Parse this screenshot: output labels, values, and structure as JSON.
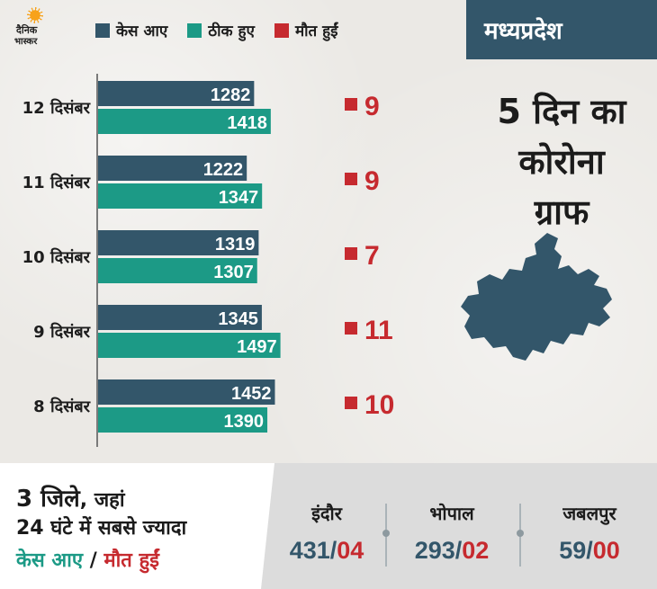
{
  "brand": {
    "line1": "दैनिक",
    "line2": "भास्कर"
  },
  "legend": [
    {
      "label": "केस आए",
      "color": "#33566a"
    },
    {
      "label": "ठीक हुए",
      "color": "#1c9a86"
    },
    {
      "label": "मौत हुईं",
      "color": "#c62a2f"
    }
  ],
  "state": {
    "name": "मध्यप्रदेश"
  },
  "headline": {
    "line1": "5 दिन का",
    "line2": "कोरोना",
    "line3": "ग्राफ"
  },
  "chart_data": {
    "type": "bar",
    "orientation": "horizontal",
    "categories": [
      "12 दिसंबर",
      "11 दिसंबर",
      "10 दिसंबर",
      "9 दिसंबर",
      "8 दिसंबर"
    ],
    "series": [
      {
        "name": "केस आए",
        "values": [
          1282,
          1222,
          1319,
          1345,
          1452
        ],
        "color": "#33566a"
      },
      {
        "name": "ठीक हुए",
        "values": [
          1418,
          1347,
          1307,
          1497,
          1390
        ],
        "color": "#1c9a86"
      },
      {
        "name": "मौत हुईं",
        "values": [
          9,
          9,
          7,
          11,
          10
        ],
        "color": "#c62a2f"
      }
    ],
    "title": "",
    "xlabel": "",
    "ylabel": ""
  },
  "bottom": {
    "line1_bold": "3 जिले",
    "line1_rest": ", जहां",
    "line2": "24 घंटे में सबसे ज्यादा",
    "line3_a": "केस आए",
    "line3_sep": " / ",
    "line3_b": "मौत हुईं",
    "cities": [
      {
        "name": "इंदौर",
        "cases": "431",
        "sep": "/",
        "deaths": "04"
      },
      {
        "name": "भोपाल",
        "cases": "293",
        "sep": "/",
        "deaths": "02"
      },
      {
        "name": "जबलपुर",
        "cases": "59",
        "sep": "/",
        "deaths": "00"
      }
    ]
  }
}
